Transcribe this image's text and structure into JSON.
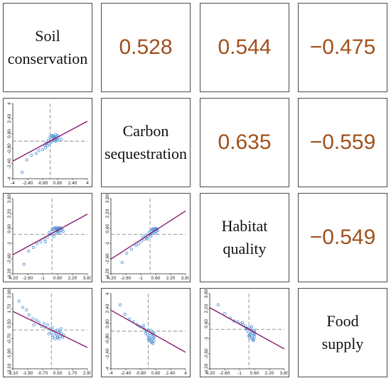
{
  "variables": [
    "Soil conservation",
    "Carbon sequestration",
    "Habitat quality",
    "Food supply"
  ],
  "labels": [
    {
      "line1": "Soil",
      "line2": "conservation"
    },
    {
      "line1": "Carbon",
      "line2": "sequestration"
    },
    {
      "line1": "Habitat",
      "line2": "quality"
    },
    {
      "line1": "Food",
      "line2": "supply"
    }
  ],
  "correlations": {
    "r0c1": "0.528",
    "r0c2": "0.544",
    "r0c3": "−0.475",
    "r1c2": "0.635",
    "r1c3": "−0.559",
    "r2c3": "−0.549"
  },
  "colors": {
    "correlation_text": "#a0501c",
    "points": "#4a8fd6",
    "fit_line": "#8b1a6b",
    "reference_lines": "#8a8a8a",
    "border": "#4a4a4a"
  },
  "chart_data": [
    {
      "type": "scatter",
      "panel": "r1c0",
      "x_variable": "Soil conservation",
      "y_variable": "Carbon sequestration",
      "xlim": [
        -4,
        4
      ],
      "ylim": [
        -4,
        4
      ],
      "x_ticks": [
        "-4",
        "-2.40",
        "-0.80",
        "0.80",
        "2.40",
        "4"
      ],
      "y_ticks": [
        "4",
        "2.40",
        "0.80",
        "-0.80",
        "-2.40",
        "-4"
      ],
      "fit": {
        "slope": 0.53,
        "intercept": 0.0
      },
      "points": [
        [
          0.2,
          0.5
        ],
        [
          0.4,
          0.3
        ],
        [
          0.6,
          0.7
        ],
        [
          0.7,
          0.5
        ],
        [
          0.8,
          0.6
        ],
        [
          0.5,
          0.1
        ],
        [
          0.3,
          0.2
        ],
        [
          0.9,
          0.4
        ],
        [
          0.1,
          -0.1
        ],
        [
          -0.1,
          -0.3
        ],
        [
          -0.3,
          -0.5
        ],
        [
          -0.5,
          -0.7
        ],
        [
          -0.8,
          -0.9
        ],
        [
          -1.2,
          -1.0
        ],
        [
          -1.5,
          -1.3
        ],
        [
          -2.0,
          -1.5
        ],
        [
          -2.5,
          -2.0
        ],
        [
          -3.0,
          -3.3
        ],
        [
          0.7,
          0.2
        ],
        [
          0.5,
          0.4
        ],
        [
          0.6,
          0.0
        ],
        [
          -0.2,
          0.1
        ],
        [
          0.0,
          0.4
        ],
        [
          0.3,
          0.6
        ],
        [
          1.2,
          0.2
        ],
        [
          0.4,
          0.5
        ],
        [
          0.8,
          0.1
        ],
        [
          -0.4,
          -0.2
        ],
        [
          0.2,
          0.0
        ],
        [
          0.6,
          0.3
        ],
        [
          0.1,
          0.6
        ],
        [
          -0.6,
          -0.4
        ]
      ]
    },
    {
      "type": "scatter",
      "panel": "r2c0",
      "x_variable": "Soil conservation",
      "y_variable": "Habitat quality",
      "xlim": [
        -4.2,
        3.8
      ],
      "ylim": [
        -4.2,
        3.8
      ],
      "x_ticks": [
        "-4.20",
        "-2.60",
        "-1",
        "0.60",
        "2.20",
        "3.80"
      ],
      "y_ticks": [
        "3.80",
        "2.20",
        "0.60",
        "-1",
        "-2.60",
        "-4.20"
      ],
      "fit": {
        "slope": 0.54,
        "intercept": 0.1
      },
      "points": [
        [
          0.2,
          0.6
        ],
        [
          0.4,
          0.6
        ],
        [
          0.6,
          0.6
        ],
        [
          0.8,
          0.6
        ],
        [
          1.0,
          0.6
        ],
        [
          0.3,
          0.4
        ],
        [
          0.5,
          0.5
        ],
        [
          0.7,
          0.3
        ],
        [
          0.9,
          0.4
        ],
        [
          0.1,
          0.3
        ],
        [
          -0.2,
          0.0
        ],
        [
          -0.5,
          -0.3
        ],
        [
          -0.8,
          -0.5
        ],
        [
          -1.2,
          -0.8
        ],
        [
          -1.6,
          -1.0
        ],
        [
          -2.0,
          -1.4
        ],
        [
          -2.5,
          -1.8
        ],
        [
          -3.0,
          -3.2
        ],
        [
          0.4,
          0.2
        ],
        [
          0.6,
          0.1
        ],
        [
          0.8,
          0.2
        ],
        [
          1.2,
          0.3
        ],
        [
          0.5,
          0.7
        ],
        [
          0.3,
          0.7
        ],
        [
          0.7,
          0.7
        ],
        [
          -0.3,
          0.2
        ],
        [
          0.0,
          0.5
        ],
        [
          1.1,
          0.5
        ],
        [
          0.2,
          -0.2
        ],
        [
          -0.7,
          -0.8
        ],
        [
          0.9,
          0.7
        ],
        [
          0.6,
          0.4
        ]
      ]
    },
    {
      "type": "scatter",
      "panel": "r2c1",
      "x_variable": "Carbon sequestration",
      "y_variable": "Habitat quality",
      "xlim": [
        -4.2,
        3.8
      ],
      "ylim": [
        -4.2,
        3.8
      ],
      "x_ticks": [
        "-4.20",
        "-2.60",
        "-1",
        "0.60",
        "2.20",
        "3.80"
      ],
      "y_ticks": [
        "3.80",
        "2.20",
        "0.60",
        "-1",
        "-2.60",
        "-4.20"
      ],
      "fit": {
        "slope": 0.64,
        "intercept": 0.05
      },
      "points": [
        [
          0.1,
          0.3
        ],
        [
          0.3,
          0.4
        ],
        [
          0.5,
          0.5
        ],
        [
          0.7,
          0.5
        ],
        [
          0.6,
          0.3
        ],
        [
          0.4,
          0.2
        ],
        [
          0.2,
          0.1
        ],
        [
          0.0,
          0.0
        ],
        [
          -0.2,
          -0.2
        ],
        [
          -0.4,
          -0.4
        ],
        [
          -0.6,
          -0.5
        ],
        [
          -0.9,
          -0.7
        ],
        [
          -1.2,
          -1.0
        ],
        [
          -1.5,
          -1.2
        ],
        [
          -2.0,
          -1.6
        ],
        [
          -2.5,
          -2.0
        ],
        [
          -3.0,
          -3.0
        ],
        [
          0.5,
          0.6
        ],
        [
          0.3,
          0.6
        ],
        [
          0.7,
          0.6
        ],
        [
          0.8,
          0.4
        ],
        [
          0.4,
          0.4
        ],
        [
          0.6,
          0.1
        ],
        [
          -0.1,
          0.2
        ],
        [
          -0.5,
          -0.1
        ],
        [
          0.2,
          0.5
        ],
        [
          -0.8,
          -0.3
        ],
        [
          -0.3,
          -0.5
        ],
        [
          0.1,
          -0.2
        ],
        [
          0.6,
          0.6
        ]
      ]
    },
    {
      "type": "scatter",
      "panel": "r3c0",
      "x_variable": "Soil conservation",
      "y_variable": "Food supply",
      "xlim": [
        -3.1,
        2.9
      ],
      "ylim": [
        -3.1,
        2.9
      ],
      "x_ticks": [
        "-3.10",
        "-1.90",
        "-0.70",
        "0.50",
        "1.70",
        "2.90"
      ],
      "y_ticks": [
        "2.90",
        "1.70",
        "0.50",
        "-0.70",
        "-1.90",
        "-3.10"
      ],
      "fit": {
        "slope": -0.48,
        "intercept": 0.0
      },
      "points": [
        [
          -2.6,
          2.3
        ],
        [
          -2.3,
          1.8
        ],
        [
          -2.0,
          1.6
        ],
        [
          -1.8,
          1.2
        ],
        [
          -1.5,
          0.9
        ],
        [
          -1.2,
          0.8
        ],
        [
          -1.0,
          0.6
        ],
        [
          -0.8,
          0.3
        ],
        [
          -0.5,
          0.2
        ],
        [
          -0.3,
          0.4
        ],
        [
          -0.1,
          0.1
        ],
        [
          0.1,
          0.2
        ],
        [
          0.3,
          -0.1
        ],
        [
          0.5,
          0.0
        ],
        [
          0.6,
          -0.2
        ],
        [
          0.8,
          -0.3
        ],
        [
          0.7,
          -0.5
        ],
        [
          0.5,
          -0.6
        ],
        [
          0.3,
          -0.7
        ],
        [
          0.9,
          -0.6
        ],
        [
          1.0,
          -0.4
        ],
        [
          0.2,
          -0.4
        ],
        [
          0.4,
          -0.3
        ],
        [
          0.6,
          -0.7
        ],
        [
          -0.2,
          -0.3
        ],
        [
          0.1,
          -0.6
        ],
        [
          0.8,
          0.1
        ],
        [
          -0.6,
          0.5
        ],
        [
          0.0,
          -0.2
        ],
        [
          0.7,
          -0.1
        ],
        [
          -1.4,
          0.4
        ],
        [
          0.5,
          -0.5
        ]
      ]
    },
    {
      "type": "scatter",
      "panel": "r3c1",
      "x_variable": "Carbon sequestration",
      "y_variable": "Food supply",
      "xlim": [
        -4,
        4
      ],
      "ylim": [
        -4,
        4
      ],
      "x_ticks": [
        "-4",
        "-2.40",
        "-0.80",
        "0.80",
        "2.40",
        "4"
      ],
      "y_ticks": [
        "4",
        "2.40",
        "0.80",
        "-0.80",
        "-2.40",
        "-4"
      ],
      "fit": {
        "slope": -0.56,
        "intercept": 0.0
      },
      "points": [
        [
          -3.0,
          2.8
        ],
        [
          -2.5,
          1.8
        ],
        [
          -2.0,
          1.3
        ],
        [
          -1.6,
          1.0
        ],
        [
          -1.2,
          0.7
        ],
        [
          -0.9,
          0.5
        ],
        [
          -0.6,
          0.4
        ],
        [
          -0.4,
          0.2
        ],
        [
          -0.2,
          0.0
        ],
        [
          0.0,
          0.1
        ],
        [
          0.2,
          -0.2
        ],
        [
          0.3,
          -0.4
        ],
        [
          0.4,
          -0.6
        ],
        [
          0.5,
          -0.8
        ],
        [
          0.6,
          -1.0
        ],
        [
          0.3,
          -1.1
        ],
        [
          0.1,
          -0.7
        ],
        [
          0.7,
          -0.5
        ],
        [
          0.5,
          -0.3
        ],
        [
          0.2,
          -0.9
        ],
        [
          0.4,
          -1.2
        ],
        [
          0.6,
          -0.2
        ],
        [
          -0.1,
          -0.4
        ],
        [
          0.0,
          -0.8
        ],
        [
          0.3,
          0.1
        ],
        [
          -0.3,
          -0.2
        ],
        [
          0.5,
          -1.3
        ],
        [
          0.1,
          -1.0
        ],
        [
          0.6,
          -0.7
        ],
        [
          -0.5,
          0.6
        ]
      ]
    },
    {
      "type": "scatter",
      "panel": "r3c2",
      "x_variable": "Habitat quality",
      "y_variable": "Food supply",
      "xlim": [
        -4.2,
        3.8
      ],
      "ylim": [
        -4.2,
        3.8
      ],
      "x_ticks": [
        "-4.20",
        "-2.60",
        "-1",
        "0.60",
        "2.20",
        "3.80"
      ],
      "y_ticks": [
        "3.80",
        "2.20",
        "0.60",
        "-1",
        "-2.60",
        "-4.20"
      ],
      "fit": {
        "slope": -0.55,
        "intercept": 0.0
      },
      "points": [
        [
          -3.3,
          2.6
        ],
        [
          -2.6,
          1.7
        ],
        [
          -2.0,
          1.2
        ],
        [
          -1.6,
          0.9
        ],
        [
          -1.2,
          0.8
        ],
        [
          -0.9,
          0.6
        ],
        [
          -0.6,
          0.5
        ],
        [
          -0.4,
          0.3
        ],
        [
          -0.2,
          0.1
        ],
        [
          0.0,
          0.2
        ],
        [
          0.2,
          0.0
        ],
        [
          0.3,
          -0.2
        ],
        [
          0.4,
          -0.4
        ],
        [
          0.5,
          -0.6
        ],
        [
          0.6,
          -0.8
        ],
        [
          0.3,
          -0.9
        ],
        [
          0.1,
          -0.6
        ],
        [
          0.6,
          -0.3
        ],
        [
          0.5,
          -1.0
        ],
        [
          0.2,
          -0.5
        ],
        [
          0.4,
          -1.1
        ],
        [
          0.6,
          -0.1
        ],
        [
          -0.1,
          -0.3
        ],
        [
          0.0,
          -0.7
        ],
        [
          0.3,
          0.3
        ],
        [
          -0.3,
          0.0
        ],
        [
          0.5,
          -1.2
        ],
        [
          0.1,
          -0.9
        ],
        [
          0.6,
          -0.5
        ],
        [
          -0.7,
          0.7
        ]
      ]
    }
  ]
}
